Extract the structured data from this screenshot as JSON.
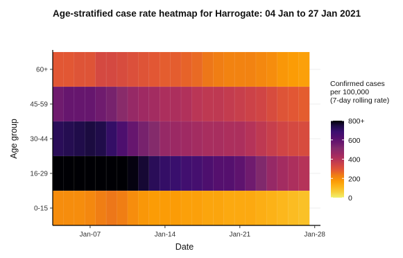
{
  "chart_data": {
    "type": "heatmap",
    "title": "Age-stratified case rate heatmap for Harrogate: 04 Jan to 27 Jan 2021",
    "xlabel": "Date",
    "ylabel": "Age group",
    "x": [
      "2021-01-04",
      "2021-01-05",
      "2021-01-06",
      "2021-01-07",
      "2021-01-08",
      "2021-01-09",
      "2021-01-10",
      "2021-01-11",
      "2021-01-12",
      "2021-01-13",
      "2021-01-14",
      "2021-01-15",
      "2021-01-16",
      "2021-01-17",
      "2021-01-18",
      "2021-01-19",
      "2021-01-20",
      "2021-01-21",
      "2021-01-22",
      "2021-01-23",
      "2021-01-24",
      "2021-01-25",
      "2021-01-26",
      "2021-01-27"
    ],
    "x_ticks": [
      "Jan-07",
      "Jan-14",
      "Jan-21",
      "Jan-28"
    ],
    "y_categories": [
      "60+",
      "45-59",
      "30-44",
      "16-29",
      "0-15"
    ],
    "values": [
      [
        290,
        290,
        300,
        300,
        330,
        330,
        320,
        310,
        300,
        290,
        280,
        280,
        270,
        260,
        240,
        230,
        220,
        220,
        220,
        210,
        200,
        180,
        170,
        160
      ],
      [
        560,
        580,
        580,
        580,
        560,
        540,
        500,
        470,
        450,
        440,
        420,
        420,
        410,
        390,
        380,
        380,
        370,
        360,
        350,
        340,
        320,
        300,
        290,
        280
      ],
      [
        720,
        730,
        740,
        750,
        740,
        700,
        640,
        580,
        540,
        510,
        470,
        460,
        450,
        440,
        430,
        430,
        420,
        420,
        400,
        380,
        360,
        340,
        330,
        320
      ],
      [
        810,
        810,
        810,
        810,
        810,
        810,
        810,
        790,
        760,
        720,
        700,
        690,
        670,
        660,
        640,
        620,
        620,
        600,
        560,
        520,
        470,
        440,
        420,
        400
      ],
      [
        200,
        200,
        200,
        210,
        230,
        240,
        230,
        200,
        180,
        170,
        170,
        170,
        160,
        160,
        150,
        150,
        140,
        140,
        140,
        130,
        120,
        110,
        100,
        90
      ]
    ],
    "color_scale": {
      "name": "inferno (reversed)",
      "domain": [
        0,
        800
      ],
      "stops": [
        "#f0f06e",
        "#f7d13d",
        "#fcb519",
        "#fb9b06",
        "#f07f13",
        "#e35932",
        "#cf4446",
        "#b53359",
        "#9c2964",
        "#822b6c",
        "#6a176e",
        "#510f6e",
        "#3b0f70",
        "#1f0c48",
        "#000004"
      ]
    },
    "legend": {
      "title": "Confirmed cases per 100,000 (7-day rolling rate)",
      "title_lines": [
        "Confirmed cases",
        " per 100,000",
        " (7-day rolling rate)"
      ],
      "ticks": [
        "800+",
        "600",
        "400",
        "200",
        "0"
      ],
      "tick_values": [
        800,
        600,
        400,
        200,
        0
      ],
      "position": "right"
    },
    "grid": true
  }
}
